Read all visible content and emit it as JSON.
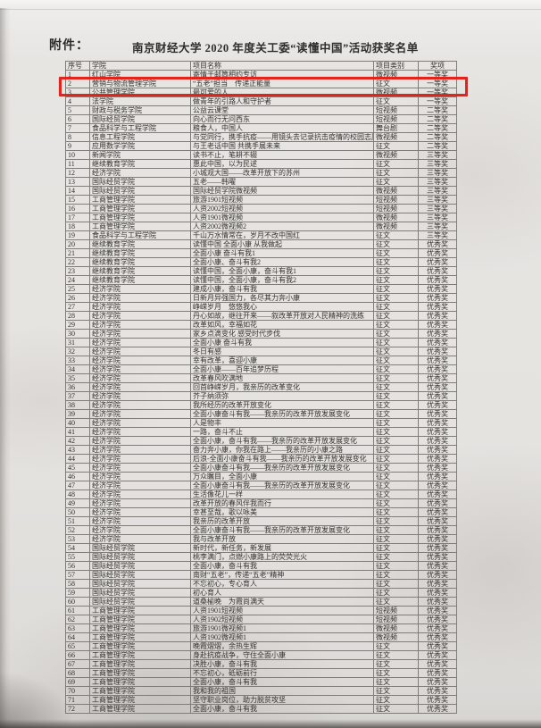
{
  "document": {
    "attachment_label": "附件：",
    "title": "南京财经大学 2020 年度关工委“读懂中国”活动获奖名单"
  },
  "table": {
    "columns": [
      "序号",
      "学院",
      "项目名称",
      "项目类别",
      "奖项"
    ],
    "rows": [
      [
        "1",
        "红山学院",
        "寄情于邮筒相约专访",
        "微视频",
        "一等奖"
      ],
      [
        "2",
        "营销与物流管理学院",
        "“五老”担当　传递正能量",
        "征文",
        "一等奖"
      ],
      [
        "3",
        "公共管理学院",
        "最可爱的人",
        "微视频",
        "一等奖"
      ],
      [
        "4",
        "法学院",
        "做青年的引路人和守护者",
        "征文",
        "一等奖"
      ],
      [
        "5",
        "财政与税务学院",
        "公益云课堂",
        "短视频",
        "二等奖"
      ],
      [
        "6",
        "国际经贸学院",
        "向心而行无问西东",
        "短视频",
        "二等奖"
      ],
      [
        "7",
        "食品科学与工程学院",
        "粮食人，中国人",
        "舞台剧",
        "二等奖"
      ],
      [
        "8",
        "信息工程学院",
        "与党同行，携手抗疫——用镜头去记录抗击疫情的校园志愿者",
        "微视频",
        "二等奖"
      ],
      [
        "9",
        "应用数学学院",
        "与王老话中国 共携手展未来",
        "征文",
        "二等奖"
      ],
      [
        "10",
        "新闻学院",
        "读书不止，笔耕不辍",
        "微视频",
        "三等奖"
      ],
      [
        "11",
        "继续教育学院",
        "惠此中国，以为民逑",
        "征文",
        "三等奖"
      ],
      [
        "12",
        "经济学院",
        "小城观大国——改革开放下的苏州",
        "征文",
        "三等奖"
      ],
      [
        "13",
        "国际经贸学院",
        "五老——韩曜",
        "征文",
        "三等奖"
      ],
      [
        "14",
        "国际经贸学院",
        "国际经贸学院微视频",
        "微视频",
        "三等奖"
      ],
      [
        "15",
        "工商管理学院",
        "旅游1901短视频",
        "短视频",
        "三等奖"
      ],
      [
        "16",
        "工商管理学院",
        "人资2002短视频",
        "短视频",
        "三等奖"
      ],
      [
        "17",
        "工商管理学院",
        "人资1901微视频",
        "微视频",
        "三等奖"
      ],
      [
        "18",
        "工商管理学院",
        "人资2002微视频2",
        "微视频",
        "三等奖"
      ],
      [
        "19",
        "食品科学与工程学院",
        "千山万水情常在，岁月不改中国红",
        "征文",
        "三等奖"
      ],
      [
        "20",
        "继续教育学院",
        "读懂中国 全面小康 从我做起",
        "征文",
        "优秀奖"
      ],
      [
        "21",
        "继续教育学院",
        "全面小康 奋斗有我1",
        "征文",
        "优秀奖"
      ],
      [
        "22",
        "继续教育学院",
        "全面小康、奋斗有我2",
        "征文",
        "优秀奖"
      ],
      [
        "23",
        "继续教育学院",
        "读懂中国，全面小康，奋斗有我1",
        "征文",
        "优秀奖"
      ],
      [
        "24",
        "继续教育学院",
        "读懂中国，全面小康，奋斗有我2",
        "征文",
        "优秀奖"
      ],
      [
        "25",
        "经济学院",
        "建成小康，奋斗有我",
        "征文",
        "优秀奖"
      ],
      [
        "26",
        "经济学院",
        "日新月异强国力，各尽其力奔小康",
        "征文",
        "优秀奖"
      ],
      [
        "27",
        "经济学院",
        "峥嵘岁月　悠悠我心",
        "征文",
        "优秀奖"
      ],
      [
        "28",
        "经济学院",
        "丹心如故，继往开来——叙改革开放对人民精神的洗练",
        "征文",
        "优秀奖"
      ],
      [
        "29",
        "经济学院",
        "改革如风，幸福如花",
        "征文",
        "优秀奖"
      ],
      [
        "30",
        "经济学院",
        "家乡点滴变化 感受时代步伐",
        "征文",
        "优秀奖"
      ],
      [
        "31",
        "经济学院",
        "全面小康 奋斗有我",
        "征文",
        "优秀奖"
      ],
      [
        "32",
        "经济学院",
        "冬日有感",
        "征文",
        "优秀奖"
      ],
      [
        "33",
        "经济学院",
        "幸有改革，喜迎小康",
        "征文",
        "优秀奖"
      ],
      [
        "34",
        "经济学院",
        "全面小康——百年追梦历程",
        "征文",
        "优秀奖"
      ],
      [
        "35",
        "经济学院",
        "改革春风吹满地",
        "征文",
        "优秀奖"
      ],
      [
        "36",
        "经济学院",
        "回首峥嵘岁月，我亲历的改革变化",
        "征文",
        "优秀奖"
      ],
      [
        "37",
        "经济学院",
        "芥子纳须弥",
        "征文",
        "优秀奖"
      ],
      [
        "38",
        "经济学院",
        "我所经历的改革开放变化",
        "征文",
        "优秀奖"
      ],
      [
        "39",
        "经济学院",
        "全面小康奋斗有我——我亲历的改革开放发展变化",
        "征文",
        "优秀奖"
      ],
      [
        "40",
        "经济学院",
        "人是物丰",
        "征文",
        "优秀奖"
      ],
      [
        "41",
        "经济学院",
        "一路，奋斗不止",
        "征文",
        "优秀奖"
      ],
      [
        "42",
        "经济学院",
        "全面小康，奋斗有我——我亲历的改革开放发展变化",
        "征文",
        "优秀奖"
      ],
      [
        "43",
        "经济学院",
        "奋力奔小康，你我在路上——我亲历的小康之路",
        "征文",
        "优秀奖"
      ],
      [
        "44",
        "经济学院",
        "后浪-全面小康奋斗有我——我亲历的改革开放发展变化",
        "征文",
        "优秀奖"
      ],
      [
        "45",
        "经济学院",
        "全面小康奋斗有我——我亲历的改革开放发展变化",
        "征文",
        "优秀奖"
      ],
      [
        "46",
        "经济学院",
        "万众瞩目，全面小康",
        "征文",
        "优秀奖"
      ],
      [
        "47",
        "经济学院",
        "全面小康奋斗有我——我亲历的改革开放发展变化",
        "征文",
        "优秀奖"
      ],
      [
        "48",
        "经济学院",
        "生活像花儿一样",
        "征文",
        "优秀奖"
      ],
      [
        "49",
        "经济学院",
        "改革开放的春风伴我而行",
        "征文",
        "优秀奖"
      ],
      [
        "50",
        "经济学院",
        "幸甚至哉，歌以咏美",
        "征文",
        "优秀奖"
      ],
      [
        "51",
        "经济学院",
        "我亲历的改革开放",
        "征文",
        "优秀奖"
      ],
      [
        "52",
        "经济学院",
        "全面小康奋斗有我——我亲历的改革开放发展变化",
        "征文",
        "优秀奖"
      ],
      [
        "53",
        "经济学院",
        "我与改革开放",
        "征文",
        "优秀奖"
      ],
      [
        "54",
        "国际经贸学院",
        "新时代，新任务，新发展",
        "征文",
        "优秀奖"
      ],
      [
        "55",
        "国际经贸学院",
        "桃李满门，点燃小康路上的荧荧光火",
        "征文",
        "优秀奖"
      ],
      [
        "56",
        "国际经贸学院",
        "全面小康，奋斗有我",
        "征文",
        "优秀奖"
      ],
      [
        "57",
        "国际经贸学院",
        "南财“五老”，传递“五老”精神",
        "征文",
        "优秀奖"
      ],
      [
        "58",
        "国际经贸学院",
        "不忘初心，专心育人",
        "征文",
        "优秀奖"
      ],
      [
        "59",
        "国际经贸学院",
        "初心育人",
        "征文",
        "优秀奖"
      ],
      [
        "60",
        "国际经贸学院",
        "道桑榆晚　为霞尚满天",
        "征文",
        "优秀奖"
      ],
      [
        "61",
        "工商管理学院",
        "人资1901短视频",
        "短视频",
        "优秀奖"
      ],
      [
        "62",
        "工商管理学院",
        "人资1902短视频",
        "短视频",
        "优秀奖"
      ],
      [
        "63",
        "工商管理学院",
        "旅游1901微视频1",
        "微视频",
        "优秀奖"
      ],
      [
        "64",
        "工商管理学院",
        "人资1902微视频1",
        "微视频",
        "优秀奖"
      ],
      [
        "65",
        "工商管理学院",
        "晚霞熠熠，余热生辉",
        "征文",
        "优秀奖"
      ],
      [
        "66",
        "工商管理学院",
        "身赴抗疫战争，守住全面小康",
        "征文",
        "优秀奖"
      ],
      [
        "67",
        "工商管理学院",
        "决胜小康，奋斗有我",
        "征文",
        "优秀奖"
      ],
      [
        "68",
        "工商管理学院",
        "不忘初心，砥砺前行",
        "征文",
        "优秀奖"
      ],
      [
        "69",
        "工商管理学院",
        "全面小康，奋斗有我",
        "征文",
        "优秀奖"
      ],
      [
        "70",
        "工商管理学院",
        "我和我的祖国",
        "征文",
        "优秀奖"
      ],
      [
        "71",
        "工商管理学院",
        "坚守职业岗位，助力脱贫攻坚",
        "征文",
        "优秀奖"
      ],
      [
        "72",
        "工商管理学院",
        "全面小康，奋斗有我",
        "征文",
        "优秀奖"
      ]
    ]
  },
  "annotation": {
    "highlight_color": "#e3231e",
    "highlighted_row_no": "2"
  }
}
